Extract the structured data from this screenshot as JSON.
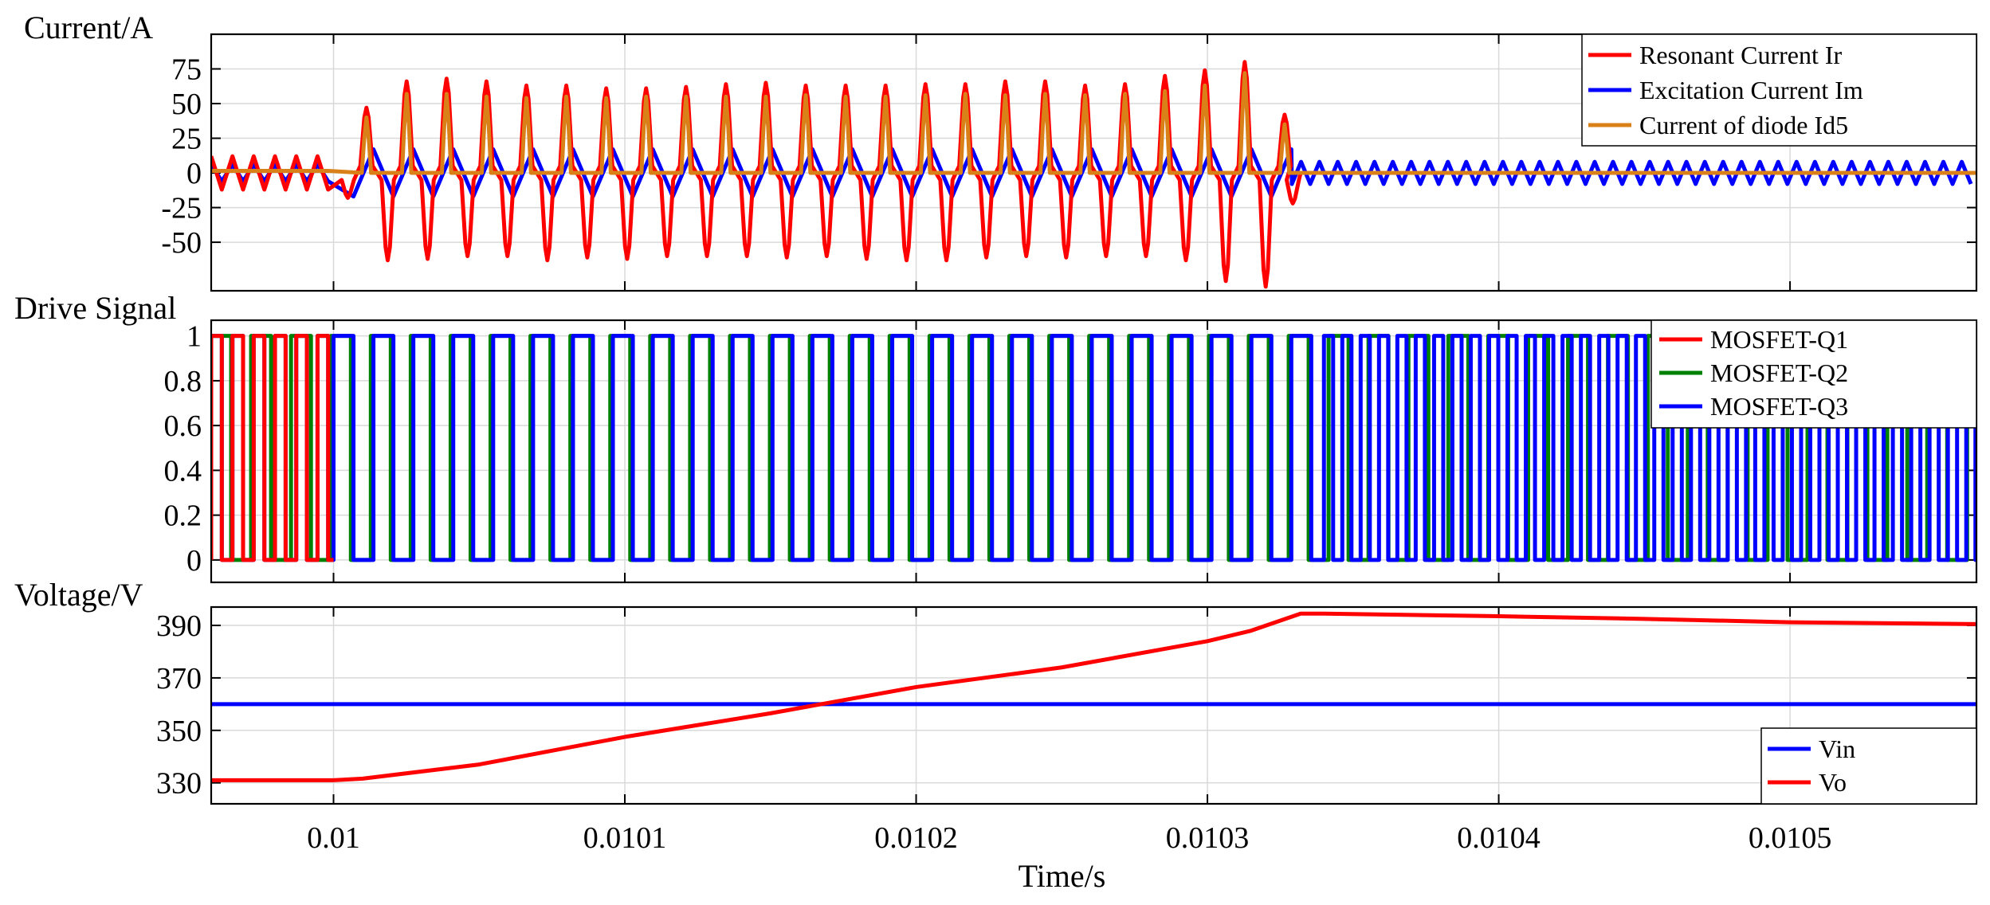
{
  "chart_data": [
    {
      "type": "line",
      "title": "Current/A",
      "xlabel": "",
      "ylabel": "Current/A",
      "xlim": [
        0.009958,
        0.010564
      ],
      "ylim": [
        -85,
        100
      ],
      "grid": true,
      "yticks": [
        -50,
        -25,
        0,
        25,
        50,
        75
      ],
      "yticklabels": [
        "-50",
        "-25",
        "0",
        "25",
        "50",
        "75"
      ],
      "legend_position": "top-right",
      "envelope": {
        "period_before_s": 7.3e-06,
        "period_during_s": 1.37e-05,
        "period_after_s": 6.3e-06,
        "transition_start_s": 0.01,
        "transition_end_s": 0.010329
      },
      "series": [
        {
          "name": "Resonant Current Ir",
          "color": "#ff0000",
          "peaks_x": [
            0.0100113,
            0.0100251,
            0.0100388,
            0.0100525,
            0.0100662,
            0.0100799,
            0.0100936,
            0.0101073,
            0.010121,
            0.0101347,
            0.0101484,
            0.0101621,
            0.0101758,
            0.0101895,
            0.0102032,
            0.0102169,
            0.0102306,
            0.0102443,
            0.010258,
            0.0102717,
            0.0102854,
            0.0102991,
            0.0103128,
            0.0103265
          ],
          "peaks_y": [
            47,
            66,
            68,
            66,
            63,
            63,
            61,
            61,
            62,
            64,
            65,
            63,
            63,
            63,
            64,
            64,
            66,
            66,
            63,
            64,
            70,
            74,
            80,
            42
          ],
          "troughs_x": [
            0.0100049,
            0.0100186,
            0.0100323,
            0.010046,
            0.0100597,
            0.0100734,
            0.0100871,
            0.0101008,
            0.0101145,
            0.0101282,
            0.0101419,
            0.0101556,
            0.0101693,
            0.010183,
            0.0101967,
            0.0102104,
            0.0102241,
            0.0102378,
            0.0102515,
            0.0102652,
            0.0102789,
            0.0102926,
            0.0103063,
            0.01032,
            0.0103293
          ],
          "troughs_y": [
            -18,
            -63,
            -62,
            -60,
            -60,
            -63,
            -61,
            -62,
            -60,
            -60,
            -60,
            -61,
            -60,
            -62,
            -63,
            -63,
            -61,
            -60,
            -61,
            -60,
            -60,
            -63,
            -78,
            -82,
            -22
          ],
          "pre_amplitude": 12,
          "post_amplitude": 0
        },
        {
          "name": "Excitation Current Im",
          "color": "#0000ff",
          "triangle_amplitude": 17,
          "pre_amplitude": 6,
          "post_amplitude": 8
        },
        {
          "name": "Current of diode  Id5",
          "color": "#d98019",
          "pulse_x": [
            0.0100113,
            0.0100251,
            0.0100388,
            0.0100525,
            0.0100662,
            0.0100799,
            0.0100936,
            0.0101073,
            0.010121,
            0.0101347,
            0.0101484,
            0.0101621,
            0.0101758,
            0.0101895,
            0.0102032,
            0.0102169,
            0.0102306,
            0.0102443,
            0.010258,
            0.0102717,
            0.0102854,
            0.0102991,
            0.0103128,
            0.0103265
          ],
          "pulse_y": [
            40,
            57,
            57,
            55,
            54,
            55,
            54,
            55,
            55,
            55,
            55,
            56,
            55,
            55,
            56,
            57,
            56,
            57,
            56,
            57,
            59,
            63,
            72,
            35
          ],
          "baseline": 0
        }
      ]
    },
    {
      "type": "line",
      "title": "Drive Signal",
      "xlabel": "",
      "ylabel": "Drive Signal",
      "xlim": [
        0.009958,
        0.010564
      ],
      "ylim": [
        -0.1,
        1.07
      ],
      "grid": true,
      "yticks": [
        0,
        0.2,
        0.4,
        0.6,
        0.8,
        1
      ],
      "yticklabels": [
        "0",
        "0.2",
        "0.4",
        "0.6",
        "0.8",
        "1"
      ],
      "legend_position": "top-right",
      "series": [
        {
          "name": "MOSFET-Q1",
          "color": "#ff0000",
          "period_s": 7.3e-06,
          "active_range_s": [
            0.009958,
            0.01
          ],
          "low": 0,
          "high": 1
        },
        {
          "name": "MOSFET-Q2",
          "color": "#008000",
          "period_s": 1.37e-05,
          "low": 0,
          "high": 1
        },
        {
          "name": "MOSFET-Q3",
          "color": "#0000ff",
          "period_before_s": 7.3e-06,
          "period_during_s": 1.37e-05,
          "period_after_s": 6.3e-06,
          "fast_start_s": 0.01034,
          "low": 0,
          "high": 1
        }
      ]
    },
    {
      "type": "line",
      "title": "Voltage/V",
      "xlabel": "Time/s",
      "ylabel": "Voltage/V",
      "xlim": [
        0.009958,
        0.010564
      ],
      "ylim": [
        322,
        397
      ],
      "grid": true,
      "yticks": [
        330,
        350,
        370,
        390
      ],
      "yticklabels": [
        "330",
        "350",
        "370",
        "390"
      ],
      "xticks": [
        0.01,
        0.0101,
        0.0102,
        0.0103,
        0.0104,
        0.0105
      ],
      "xticklabels": [
        "0.01",
        "0.0101",
        "0.0102",
        "0.0103",
        "0.0104",
        "0.0105"
      ],
      "legend_position": "bottom-right",
      "series": [
        {
          "name": "Vin",
          "color": "#0000ff",
          "x": [
            0.009958,
            0.010564
          ],
          "y": [
            360,
            360
          ]
        },
        {
          "name": "Vo",
          "color": "#ff0000",
          "x": [
            0.009958,
            0.01,
            0.01001,
            0.01005,
            0.0101,
            0.01015,
            0.0102,
            0.01025,
            0.0103,
            0.010315,
            0.010332,
            0.01034,
            0.0104,
            0.01045,
            0.0105,
            0.010564
          ],
          "y": [
            331,
            331,
            331.6,
            337,
            347.5,
            356.5,
            366.5,
            374,
            384,
            388,
            394.5,
            394.5,
            393.5,
            392.5,
            391.2,
            390.5
          ]
        }
      ]
    }
  ]
}
